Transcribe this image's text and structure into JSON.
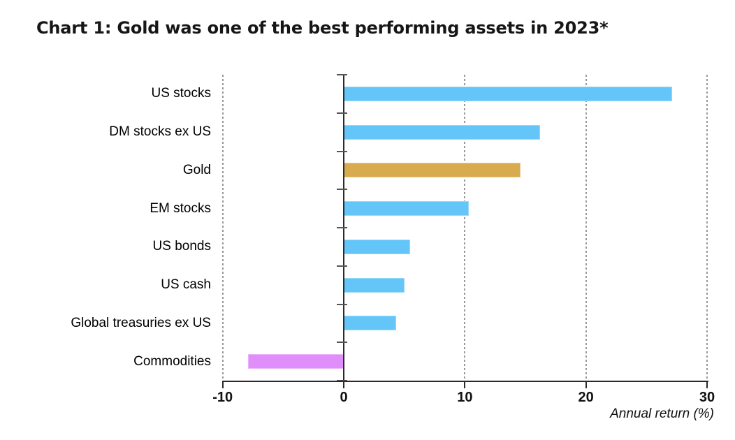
{
  "title": "Chart 1: Gold was one of the best performing assets in 2023*",
  "chart_data": {
    "type": "bar",
    "orientation": "horizontal",
    "title": "Chart 1: Gold was one of the best performing assets in 2023*",
    "xlabel": "Annual return (%)",
    "xlim": [
      -10,
      30
    ],
    "xticks": [
      -10,
      0,
      10,
      20,
      30
    ],
    "xtick_labels": [
      "-10",
      "0",
      "10",
      "20",
      "30"
    ],
    "grid": "vertical dashed gridlines at -10, 10, 20, 30; solid axis at 0",
    "legend": "none",
    "categories": [
      "US stocks",
      "DM stocks ex US",
      "Gold",
      "EM stocks",
      "US bonds",
      "US cash",
      "Global treasuries ex US",
      "Commodities"
    ],
    "values": [
      27.1,
      16.2,
      14.6,
      10.3,
      5.5,
      5.0,
      4.3,
      -7.9
    ],
    "bar_colors": [
      "#63c5f8",
      "#63c5f8",
      "#d8ab4e",
      "#63c5f8",
      "#63c5f8",
      "#63c5f8",
      "#63c5f8",
      "#e08ef9"
    ]
  },
  "colors": {
    "bar_default": "#63c5f8",
    "bar_gold": "#d8ab4e",
    "bar_commodities": "#e08ef9",
    "axis": "#2b2b2b",
    "gridline": "#999999",
    "title_text": "#161616",
    "label_text": "#000000"
  }
}
